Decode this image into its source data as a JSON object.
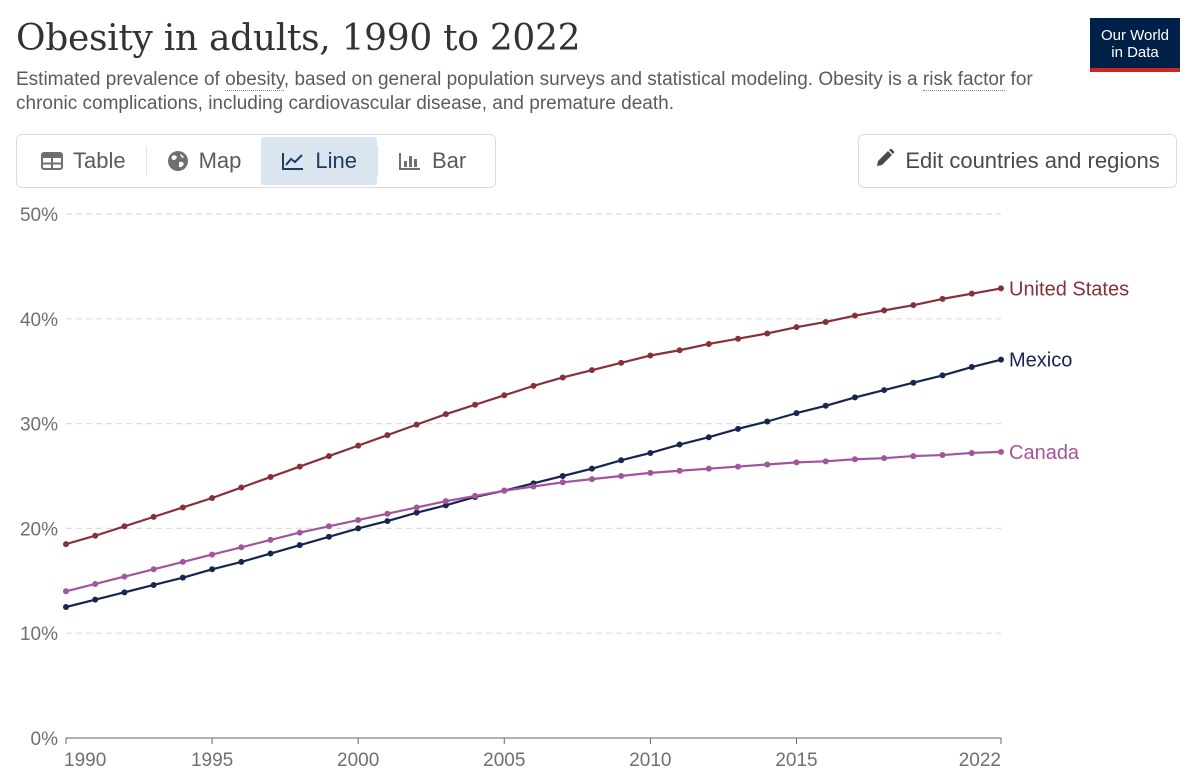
{
  "header": {
    "title": "Obesity in adults, 1990 to 2022",
    "subtitle_pre": "Estimated prevalence of ",
    "subtitle_link1": "obesity",
    "subtitle_mid": ", based on general population surveys and statistical modeling. Obesity is a ",
    "subtitle_link2": "risk factor",
    "subtitle_post": " for chronic complications, including cardiovascular disease, and premature death.",
    "logo_line1": "Our World",
    "logo_line2": "in Data"
  },
  "tabs": [
    {
      "label": "Table",
      "icon": "table-icon",
      "active": false
    },
    {
      "label": "Map",
      "icon": "globe-icon",
      "active": false
    },
    {
      "label": "Line",
      "icon": "line-chart-icon",
      "active": true
    },
    {
      "label": "Bar",
      "icon": "bar-chart-icon",
      "active": false
    }
  ],
  "edit_button": {
    "label": "Edit countries and regions",
    "icon": "pencil-icon"
  },
  "colors": {
    "united_states": "#883039",
    "mexico": "#18254f",
    "canada": "#a2559c",
    "grid": "#dddddd",
    "axis": "#666666",
    "logo_bg": "#002147",
    "logo_accent": "#ce261e",
    "active_tab_bg": "#dbe5f0"
  },
  "chart_data": {
    "type": "line",
    "x": [
      1990,
      1991,
      1992,
      1993,
      1994,
      1995,
      1996,
      1997,
      1998,
      1999,
      2000,
      2001,
      2002,
      2003,
      2004,
      2005,
      2006,
      2007,
      2008,
      2009,
      2010,
      2011,
      2012,
      2013,
      2014,
      2015,
      2016,
      2017,
      2018,
      2019,
      2020,
      2021,
      2022
    ],
    "ylim": [
      0,
      50
    ],
    "yticks": [
      0,
      10,
      20,
      30,
      40,
      50
    ],
    "ytick_labels": [
      "0%",
      "10%",
      "20%",
      "30%",
      "40%",
      "50%"
    ],
    "xticks": [
      1990,
      1995,
      2000,
      2005,
      2010,
      2015,
      2022
    ],
    "xtick_labels": [
      "1990",
      "1995",
      "2000",
      "2005",
      "2010",
      "2015",
      "2022"
    ],
    "grid": "horizontal dashed",
    "legend": "inline labels at line ends",
    "series": [
      {
        "name": "United States",
        "color_key": "united_states",
        "values": [
          18.5,
          19.3,
          20.2,
          21.1,
          22.0,
          22.9,
          23.9,
          24.9,
          25.9,
          26.9,
          27.9,
          28.9,
          29.9,
          30.9,
          31.8,
          32.7,
          33.6,
          34.4,
          35.1,
          35.8,
          36.5,
          37.0,
          37.6,
          38.1,
          38.6,
          39.2,
          39.7,
          40.3,
          40.8,
          41.3,
          41.9,
          42.4,
          42.9
        ]
      },
      {
        "name": "Mexico",
        "color_key": "mexico",
        "values": [
          12.5,
          13.2,
          13.9,
          14.6,
          15.3,
          16.1,
          16.8,
          17.6,
          18.4,
          19.2,
          20.0,
          20.7,
          21.5,
          22.2,
          23.0,
          23.6,
          24.3,
          25.0,
          25.7,
          26.5,
          27.2,
          28.0,
          28.7,
          29.5,
          30.2,
          31.0,
          31.7,
          32.5,
          33.2,
          33.9,
          34.6,
          35.4,
          36.1
        ]
      },
      {
        "name": "Canada",
        "color_key": "canada",
        "values": [
          14.0,
          14.7,
          15.4,
          16.1,
          16.8,
          17.5,
          18.2,
          18.9,
          19.6,
          20.2,
          20.8,
          21.4,
          22.0,
          22.6,
          23.1,
          23.6,
          24.0,
          24.4,
          24.7,
          25.0,
          25.3,
          25.5,
          25.7,
          25.9,
          26.1,
          26.3,
          26.4,
          26.6,
          26.7,
          26.9,
          27.0,
          27.2,
          27.3
        ]
      }
    ]
  }
}
